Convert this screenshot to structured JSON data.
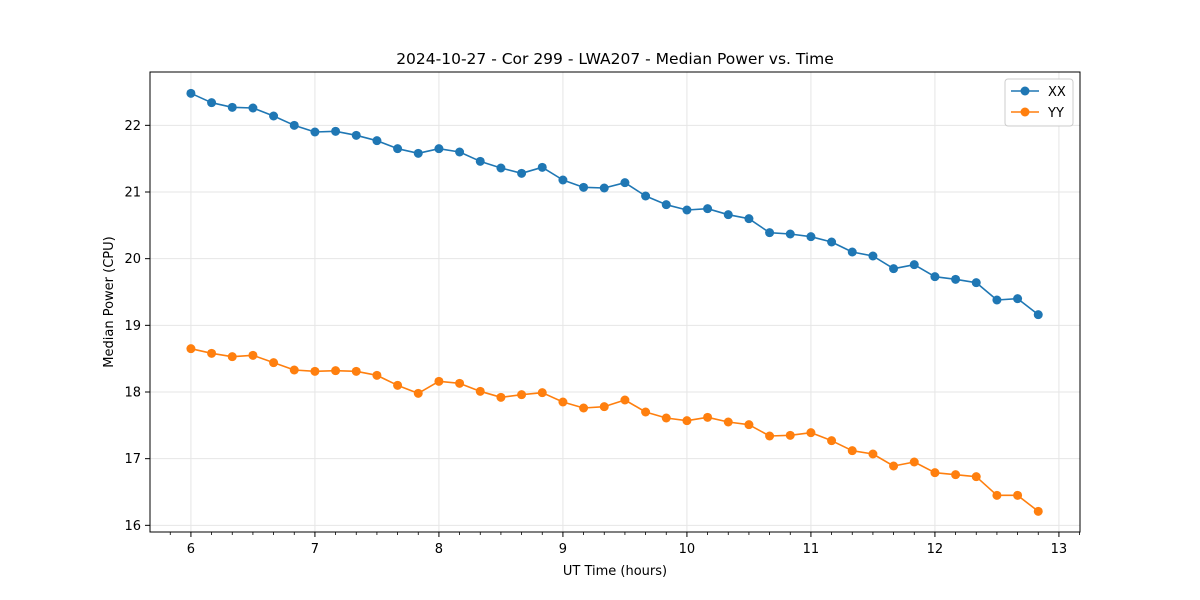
{
  "chart_data": {
    "type": "line",
    "title": "2024-10-27 - Cor 299 - LWA207 - Median Power vs. Time",
    "xlabel": "UT Time (hours)",
    "ylabel": "Median Power (CPU)",
    "xlim": [
      5.67,
      13.17
    ],
    "ylim": [
      15.9,
      22.8
    ],
    "xticks": [
      6,
      7,
      8,
      9,
      10,
      11,
      12,
      13
    ],
    "xticklabels": [
      "6",
      "7",
      "8",
      "9",
      "10",
      "11",
      "12",
      "13"
    ],
    "yticks": [
      16,
      17,
      18,
      19,
      20,
      21,
      22
    ],
    "yticklabels": [
      "16",
      "17",
      "18",
      "19",
      "20",
      "21",
      "22"
    ],
    "grid": true,
    "legend": "top-right",
    "x": [
      6.0,
      6.1667,
      6.3333,
      6.5,
      6.6667,
      6.8333,
      7.0,
      7.1667,
      7.3333,
      7.5,
      7.6667,
      7.8333,
      8.0,
      8.1667,
      8.3333,
      8.5,
      8.6667,
      8.8333,
      9.0,
      9.1667,
      9.3333,
      9.5,
      9.6667,
      9.8333,
      10.0,
      10.1667,
      10.3333,
      10.5,
      10.6667,
      10.8333,
      11.0,
      11.1667,
      11.3333,
      11.5,
      11.6667,
      11.8333,
      12.0,
      12.1667,
      12.3333,
      12.5,
      12.6667,
      12.8333
    ],
    "series": [
      {
        "name": "XX",
        "color": "#1f77b4",
        "values": [
          22.48,
          22.34,
          22.27,
          22.26,
          22.14,
          22.0,
          21.9,
          21.91,
          21.85,
          21.77,
          21.65,
          21.58,
          21.65,
          21.6,
          21.46,
          21.36,
          21.28,
          21.37,
          21.18,
          21.07,
          21.06,
          21.14,
          20.94,
          20.81,
          20.73,
          20.75,
          20.66,
          20.6,
          20.39,
          20.37,
          20.33,
          20.25,
          20.1,
          20.04,
          19.85,
          19.91,
          19.73,
          19.69,
          19.64,
          19.38,
          19.4,
          19.16
        ]
      },
      {
        "name": "YY",
        "color": "#ff7f0e",
        "values": [
          18.65,
          18.58,
          18.53,
          18.55,
          18.44,
          18.33,
          18.31,
          18.32,
          18.31,
          18.25,
          18.1,
          17.98,
          18.16,
          18.13,
          18.01,
          17.92,
          17.96,
          17.99,
          17.85,
          17.76,
          17.78,
          17.88,
          17.7,
          17.61,
          17.57,
          17.62,
          17.55,
          17.51,
          17.34,
          17.35,
          17.39,
          17.27,
          17.12,
          17.07,
          16.89,
          16.95,
          16.79,
          16.76,
          16.73,
          16.45,
          16.45,
          16.21
        ]
      }
    ]
  }
}
